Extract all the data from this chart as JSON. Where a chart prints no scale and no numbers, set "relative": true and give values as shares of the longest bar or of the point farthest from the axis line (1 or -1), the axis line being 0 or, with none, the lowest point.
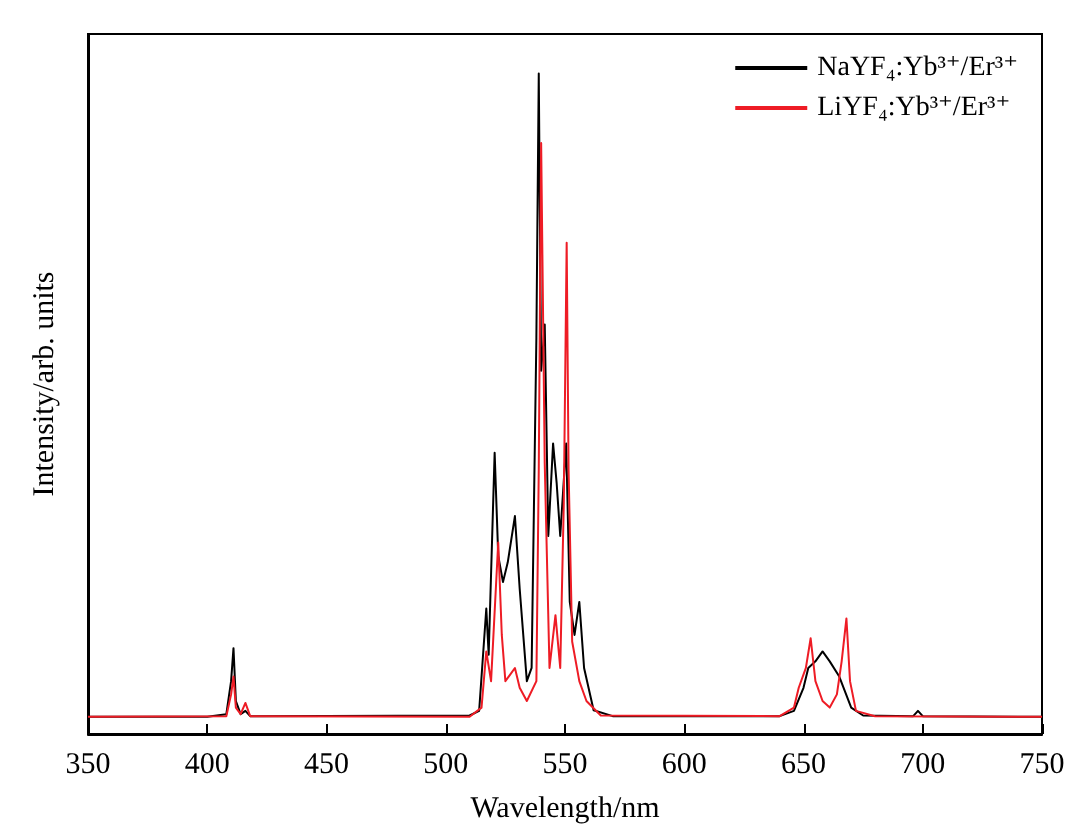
{
  "chart_data": {
    "type": "line",
    "xlabel": "Wavelength/nm",
    "ylabel": "Intensity/arb. units",
    "relative": true,
    "xlim": [
      350,
      750
    ],
    "xticks": [
      350,
      400,
      450,
      500,
      550,
      600,
      650,
      700,
      750
    ],
    "legend": "top right",
    "grid": false,
    "marker": "none",
    "line_style": "solid",
    "series": [
      {
        "name": "NaYF₄:Yb³⁺/Er³⁺",
        "color": "#000000",
        "x": [
          350,
          400,
          408,
          410,
          411,
          412,
          414,
          416,
          418,
          510,
          514,
          517,
          518,
          520.5,
          522,
          524,
          526,
          529,
          531,
          534,
          536,
          538,
          539,
          540,
          541.5,
          543,
          545,
          546.5,
          548,
          550.5,
          552,
          554,
          556,
          558,
          562,
          570,
          640,
          646,
          650,
          652,
          655,
          658,
          661,
          665,
          670,
          675,
          696,
          698,
          700,
          750
        ],
        "values": [
          0.026,
          0.026,
          0.03,
          0.08,
          0.13,
          0.05,
          0.03,
          0.035,
          0.027,
          0.028,
          0.035,
          0.19,
          0.12,
          0.426,
          0.27,
          0.23,
          0.26,
          0.33,
          0.22,
          0.08,
          0.1,
          0.6,
          1.0,
          0.55,
          0.62,
          0.3,
          0.44,
          0.38,
          0.3,
          0.44,
          0.2,
          0.15,
          0.2,
          0.1,
          0.036,
          0.027,
          0.027,
          0.035,
          0.07,
          0.1,
          0.11,
          0.125,
          0.11,
          0.087,
          0.04,
          0.028,
          0.027,
          0.035,
          0.027,
          0.026
        ]
      },
      {
        "name": "LiYF₄:Yb³⁺/Er³⁺",
        "color": "#ee1c25",
        "x": [
          350,
          408,
          410,
          411,
          412,
          414,
          416,
          418,
          510,
          515,
          517,
          519,
          522,
          523.5,
          525,
          527,
          529,
          531,
          534,
          538,
          539,
          540,
          541.5,
          543.5,
          546,
          548,
          549.5,
          550.7,
          551.5,
          553,
          556,
          559,
          565,
          640,
          646,
          648,
          651,
          653,
          655,
          658,
          661,
          664,
          666,
          668,
          669.5,
          672,
          680,
          750
        ],
        "values": [
          0.026,
          0.027,
          0.06,
          0.087,
          0.04,
          0.03,
          0.047,
          0.027,
          0.026,
          0.04,
          0.125,
          0.08,
          0.29,
          0.15,
          0.08,
          0.09,
          0.1,
          0.07,
          0.05,
          0.08,
          0.4,
          0.895,
          0.41,
          0.1,
          0.18,
          0.1,
          0.35,
          0.744,
          0.4,
          0.14,
          0.08,
          0.05,
          0.028,
          0.027,
          0.04,
          0.07,
          0.1,
          0.145,
          0.08,
          0.05,
          0.04,
          0.06,
          0.11,
          0.175,
          0.08,
          0.035,
          0.027,
          0.026
        ]
      }
    ]
  }
}
